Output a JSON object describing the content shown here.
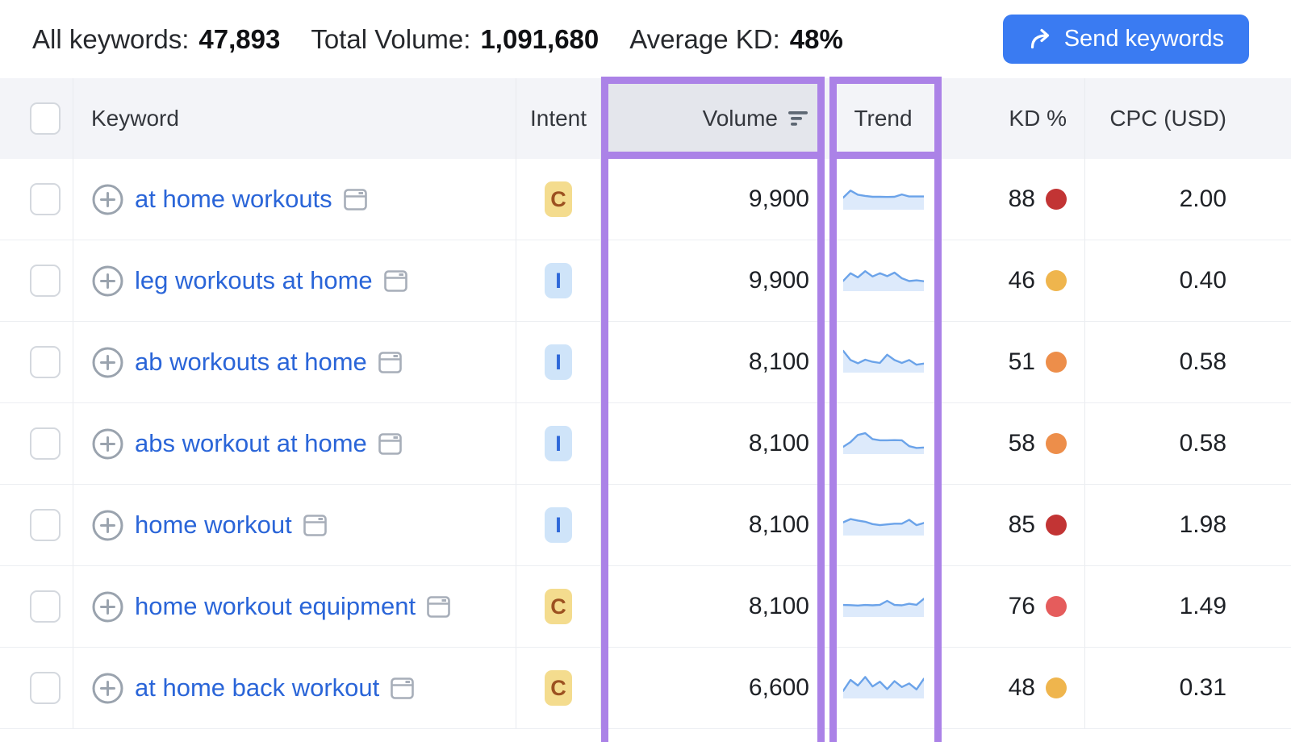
{
  "colors": {
    "accent_blue": "#3a7bf2",
    "highlight_purple": "#ab82e7",
    "link_blue": "#2a65d8",
    "spark_line": "#6ba3e9",
    "spark_fill": "#ddeafb",
    "kd_red_dark": "#c23434",
    "kd_red_light": "#e55c5c",
    "kd_orange": "#ed8e4a",
    "kd_yellow": "#efb54d"
  },
  "summary": {
    "all_keywords_label": "All keywords:",
    "all_keywords_value": "47,893",
    "total_volume_label": "Total Volume:",
    "total_volume_value": "1,091,680",
    "avg_kd_label": "Average KD:",
    "avg_kd_value": "48%"
  },
  "send_button": {
    "label": "Send keywords"
  },
  "table": {
    "headers": {
      "keyword": "Keyword",
      "intent": "Intent",
      "volume": "Volume",
      "trend": "Trend",
      "kd": "KD %",
      "cpc": "CPC (USD)"
    },
    "intent_styles": {
      "C": {
        "label": "C",
        "bg": "#f4dc8e",
        "fg": "#9c5120"
      },
      "I": {
        "label": "I",
        "bg": "#cfe4f9",
        "fg": "#2e68d9"
      }
    },
    "rows": [
      {
        "keyword": "at home workouts",
        "intent": "C",
        "volume": "9,900",
        "kd": "88",
        "kd_color": "#c23434",
        "cpc": "2.00",
        "trend": [
          0.45,
          0.85,
          0.62,
          0.55,
          0.5,
          0.5,
          0.49,
          0.5,
          0.63,
          0.52,
          0.52,
          0.52
        ]
      },
      {
        "keyword": "leg workouts at home",
        "intent": "I",
        "volume": "9,900",
        "kd": "46",
        "kd_color": "#efb54d",
        "cpc": "0.40",
        "trend": [
          0.35,
          0.78,
          0.55,
          0.9,
          0.6,
          0.78,
          0.62,
          0.82,
          0.5,
          0.34,
          0.38,
          0.33
        ]
      },
      {
        "keyword": "ab workouts at home",
        "intent": "I",
        "volume": "8,100",
        "kd": "51",
        "kd_color": "#ed8e4a",
        "cpc": "0.58",
        "trend": [
          1.0,
          0.48,
          0.3,
          0.5,
          0.38,
          0.32,
          0.78,
          0.48,
          0.32,
          0.48,
          0.22,
          0.28
        ]
      },
      {
        "keyword": "abs workout at home",
        "intent": "I",
        "volume": "8,100",
        "kd": "58",
        "kd_color": "#ed8e4a",
        "cpc": "0.58",
        "trend": [
          0.18,
          0.45,
          0.85,
          0.95,
          0.62,
          0.55,
          0.55,
          0.56,
          0.55,
          0.22,
          0.12,
          0.14
        ]
      },
      {
        "keyword": "home workout",
        "intent": "I",
        "volume": "8,100",
        "kd": "85",
        "kd_color": "#c23434",
        "cpc": "1.98",
        "trend": [
          0.52,
          0.7,
          0.62,
          0.55,
          0.42,
          0.36,
          0.4,
          0.44,
          0.44,
          0.66,
          0.36,
          0.48
        ]
      },
      {
        "keyword": "home workout equipment",
        "intent": "C",
        "volume": "8,100",
        "kd": "76",
        "kd_color": "#e55c5c",
        "cpc": "1.49",
        "trend": [
          0.45,
          0.44,
          0.42,
          0.45,
          0.43,
          0.46,
          0.68,
          0.45,
          0.43,
          0.52,
          0.46,
          0.8
        ]
      },
      {
        "keyword": "at home back workout",
        "intent": "C",
        "volume": "6,600",
        "kd": "48",
        "kd_color": "#efb54d",
        "cpc": "0.31",
        "trend": [
          0.2,
          0.82,
          0.5,
          0.98,
          0.45,
          0.72,
          0.3,
          0.75,
          0.42,
          0.62,
          0.28,
          0.88
        ]
      }
    ]
  }
}
